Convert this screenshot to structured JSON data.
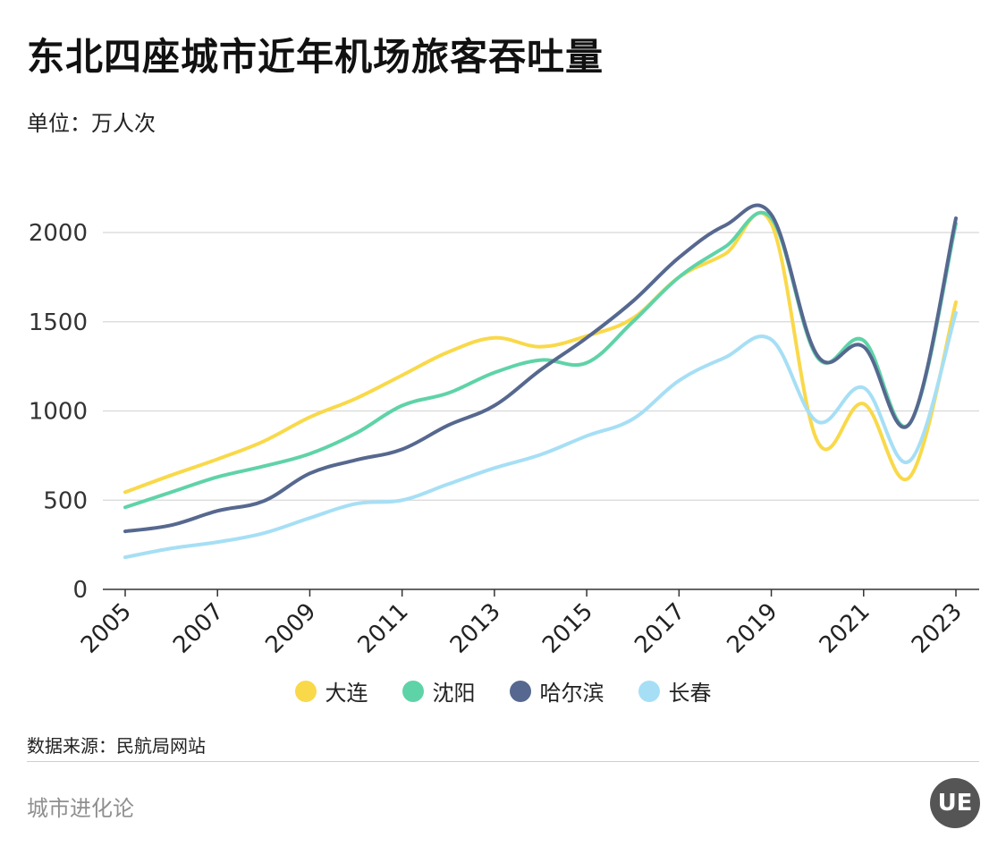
{
  "header": {
    "title": "东北四座城市近年机场旅客吞吐量",
    "unit": "单位：万人次"
  },
  "footer": {
    "source": "数据来源：民航局网站",
    "brand": "城市进化论",
    "logo_text": "UE"
  },
  "chart_data": {
    "type": "line",
    "title": "东北四座城市近年机场旅客吞吐量",
    "ylabel": "单位：万人次",
    "x": [
      2005,
      2006,
      2007,
      2008,
      2009,
      2010,
      2011,
      2012,
      2013,
      2014,
      2015,
      2016,
      2017,
      2018,
      2019,
      2020,
      2021,
      2022,
      2023
    ],
    "x_tick_labels": [
      "2005",
      "2007",
      "2009",
      "2011",
      "2013",
      "2015",
      "2017",
      "2019",
      "2021",
      "2023"
    ],
    "y_ticks": [
      0,
      500,
      1000,
      1500,
      2000
    ],
    "ylim": [
      0,
      2150
    ],
    "grid": "horizontal",
    "legend_position": "bottom",
    "series": [
      {
        "name": "大连",
        "color": "#f9d94a",
        "values": [
          545,
          640,
          730,
          830,
          965,
          1070,
          1200,
          1330,
          1410,
          1360,
          1420,
          1520,
          1750,
          1880,
          2050,
          830,
          1040,
          630,
          1610
        ]
      },
      {
        "name": "沈阳",
        "color": "#5fd3a8",
        "values": [
          460,
          545,
          630,
          690,
          760,
          875,
          1030,
          1100,
          1215,
          1285,
          1270,
          1500,
          1750,
          1920,
          2080,
          1300,
          1395,
          930,
          2050
        ]
      },
      {
        "name": "哈尔滨",
        "color": "#56688f",
        "values": [
          325,
          360,
          440,
          495,
          650,
          725,
          785,
          920,
          1030,
          1230,
          1410,
          1615,
          1860,
          2040,
          2100,
          1310,
          1360,
          930,
          2080
        ]
      },
      {
        "name": "长春",
        "color": "#a6dff5",
        "values": [
          180,
          230,
          265,
          315,
          400,
          480,
          500,
          590,
          680,
          755,
          860,
          955,
          1170,
          1300,
          1400,
          940,
          1130,
          720,
          1550
        ]
      }
    ]
  }
}
